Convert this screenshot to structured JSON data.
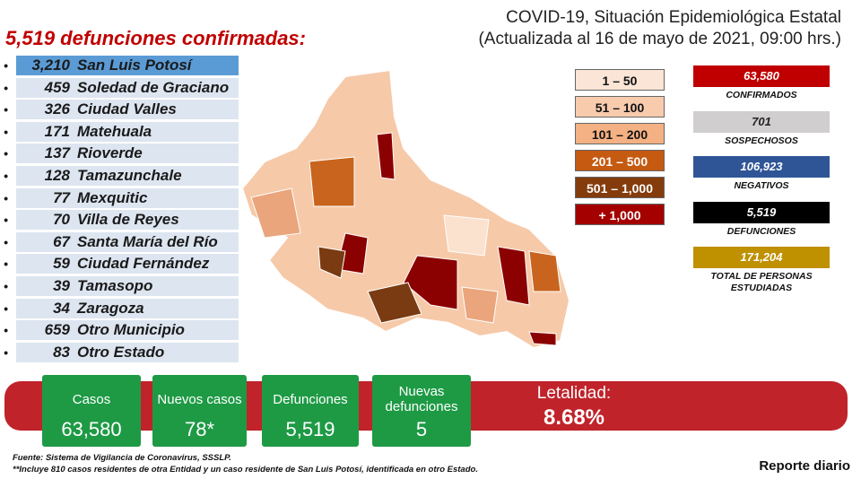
{
  "header": {
    "title": "COVID-19, Situación Epidemiológica Estatal",
    "subtitle": "(Actualizada al 16 de mayo de 2021, 09:00 hrs.)"
  },
  "deaths": {
    "title": "5,519 defunciones confirmadas:",
    "rows": [
      {
        "value": "3,210",
        "name": "San Luis Potosí"
      },
      {
        "value": "459",
        "name": "Soledad de Graciano"
      },
      {
        "value": "326",
        "name": "Ciudad Valles"
      },
      {
        "value": "171",
        "name": "Matehuala"
      },
      {
        "value": "137",
        "name": "Rioverde"
      },
      {
        "value": "128",
        "name": "Tamazunchale"
      },
      {
        "value": "77",
        "name": "Mexquitic"
      },
      {
        "value": "70",
        "name": "Villa de Reyes"
      },
      {
        "value": "67",
        "name": "Santa María del Río"
      },
      {
        "value": "59",
        "name": "Ciudad Fernández"
      },
      {
        "value": "39",
        "name": "Tamasopo"
      },
      {
        "value": "34",
        "name": "Zaragoza"
      },
      {
        "value": "659",
        "name": "Otro Municipio"
      },
      {
        "value": "83",
        "name": "Otro Estado"
      }
    ]
  },
  "legend": [
    {
      "label": "1 – 50",
      "color": "#fbe5d6"
    },
    {
      "label": "51 – 100",
      "color": "#f8cbad"
    },
    {
      "label": "101 – 200",
      "color": "#f4b183"
    },
    {
      "label": "201 – 500",
      "color": "#c55a11"
    },
    {
      "label": "501 – 1,000",
      "color": "#843c0c"
    },
    {
      "label": "+ 1,000",
      "color": "#a50000"
    }
  ],
  "stats": [
    {
      "value": "63,580",
      "label": "CONFIRMADOS",
      "color": "#c00000"
    },
    {
      "value": "701",
      "label": "SOSPECHOSOS",
      "color": "#d0cece"
    },
    {
      "value": "106,923",
      "label": "NEGATIVOS",
      "color": "#2f5597"
    },
    {
      "value": "5,519",
      "label": "DEFUNCIONES",
      "color": "#000000"
    },
    {
      "value": "171,204",
      "label": "TOTAL DE PERSONAS ESTUDIADAS",
      "color": "#bf9000"
    }
  ],
  "boxes": [
    {
      "label": "Casos",
      "value": "63,580"
    },
    {
      "label": "Nuevos casos",
      "value": "78*"
    },
    {
      "label": "Defunciones",
      "value": "5,519"
    },
    {
      "label": "Nuevas defunciones",
      "value": "5"
    }
  ],
  "letalidad": {
    "label": "Letalidad:",
    "value": "8.68%"
  },
  "footer": {
    "source": "Fuente: Sistema de Vigilancia de Coronavirus, SSSLP.",
    "note": "**Incluye 810 casos residentes de otra Entidad y un caso residente de San Luis Potosí, identificada en otro Estado.",
    "report": "Reporte diario"
  }
}
